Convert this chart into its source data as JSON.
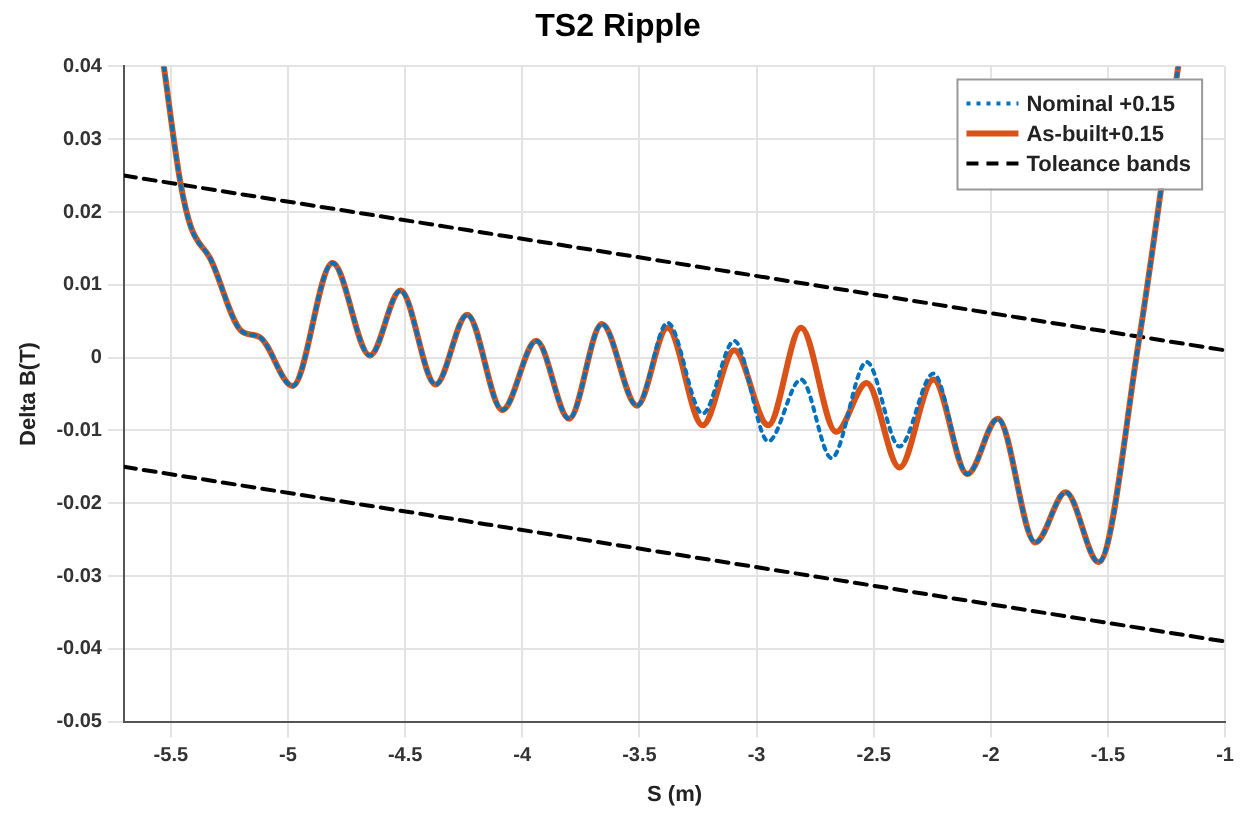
{
  "chart_data": {
    "type": "line",
    "title": "TS2 Ripple",
    "xlabel": "S (m)",
    "ylabel": "Delta B(T)",
    "xlim": [
      -5.7,
      -1
    ],
    "xticks": [
      -5.5,
      -5,
      -4.5,
      -4,
      -3.5,
      -3,
      -2.5,
      -2,
      -1.5,
      -1
    ],
    "ylim": [
      -0.05,
      0.04
    ],
    "yticks": [
      -0.05,
      -0.04,
      -0.03,
      -0.02,
      -0.01,
      0,
      0.01,
      0.02,
      0.03,
      0.04
    ],
    "grid": true,
    "legend": "top right",
    "marker": "none",
    "series": [
      {
        "name": "Nominal +0.15",
        "color": "#0072bd",
        "line_style": "dotted",
        "x": [
          -5.53,
          -5.46,
          -5.415,
          -5.33,
          -5.2,
          -5.12,
          -4.98,
          -4.81,
          -4.65,
          -4.52,
          -4.37,
          -4.235,
          -4.085,
          -3.94,
          -3.8,
          -3.66,
          -3.51,
          -3.38,
          -3.23,
          -3.095,
          -2.95,
          -2.81,
          -2.68,
          -2.53,
          -2.39,
          -2.245,
          -2.1,
          -1.97,
          -1.81,
          -1.68,
          -1.54,
          -1.37,
          -1.2
        ],
        "values": [
          0.04,
          0.0242,
          0.018,
          0.0135,
          0.0037,
          0.0028,
          -0.0039,
          0.013,
          0.0003,
          0.0092,
          -0.0037,
          0.0059,
          -0.0072,
          0.0023,
          -0.0084,
          0.0046,
          -0.0066,
          0.0048,
          -0.0077,
          0.0023,
          -0.0115,
          -0.003,
          -0.0138,
          -0.0006,
          -0.0122,
          -0.0022,
          -0.016,
          -0.0084,
          -0.0254,
          -0.0185,
          -0.0281,
          0.0019,
          0.04
        ]
      },
      {
        "name": "As-built+0.15",
        "color": "#d95319",
        "line_style": "solid",
        "x": [
          -5.53,
          -5.46,
          -5.415,
          -5.33,
          -5.2,
          -5.12,
          -4.98,
          -4.81,
          -4.65,
          -4.52,
          -4.37,
          -4.235,
          -4.085,
          -3.94,
          -3.8,
          -3.66,
          -3.51,
          -3.38,
          -3.23,
          -3.095,
          -2.95,
          -2.81,
          -2.66,
          -2.53,
          -2.39,
          -2.245,
          -2.1,
          -1.97,
          -1.81,
          -1.68,
          -1.54,
          -1.37,
          -1.2
        ],
        "values": [
          0.04,
          0.0242,
          0.018,
          0.0135,
          0.0037,
          0.0028,
          -0.0039,
          0.013,
          0.0003,
          0.0092,
          -0.0037,
          0.0059,
          -0.0072,
          0.0023,
          -0.0084,
          0.0046,
          -0.0066,
          0.0041,
          -0.0093,
          0.001,
          -0.0093,
          0.0041,
          -0.0102,
          -0.0035,
          -0.0151,
          -0.003,
          -0.016,
          -0.0084,
          -0.0254,
          -0.0185,
          -0.0281,
          0.0019,
          0.04
        ]
      },
      {
        "name": "Toleance bands",
        "color": "#000000",
        "line_style": "dashed",
        "x": [
          -5.7,
          -1
        ],
        "values": [
          0.025,
          0.001
        ]
      },
      {
        "color": "#000000",
        "line_style": "dashed",
        "x": [
          -5.7,
          -1
        ],
        "values": [
          -0.015,
          -0.039
        ]
      }
    ]
  }
}
